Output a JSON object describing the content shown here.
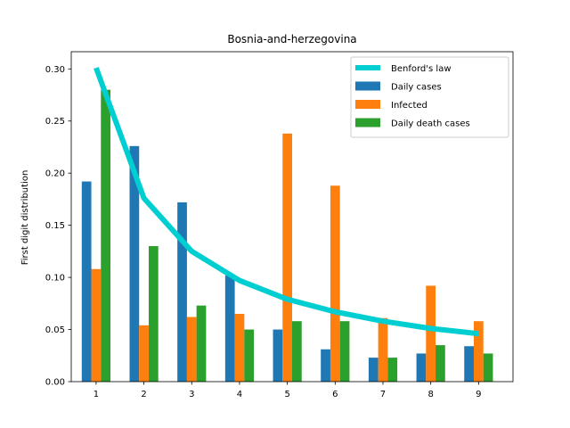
{
  "chart_data": {
    "type": "bar",
    "title": "Bosnia-and-herzegovina",
    "xlabel": "",
    "ylabel": "First digit distribution",
    "categories": [
      "1",
      "2",
      "3",
      "4",
      "5",
      "6",
      "7",
      "8",
      "9"
    ],
    "x": [
      1,
      2,
      3,
      4,
      5,
      6,
      7,
      8,
      9
    ],
    "xticks": [
      "1",
      "2",
      "3",
      "4",
      "5",
      "6",
      "7",
      "8",
      "9"
    ],
    "xlim": [
      0.48,
      9.72
    ],
    "ylim": [
      0,
      0.3165
    ],
    "yticks": [
      "0.00",
      "0.05",
      "0.10",
      "0.15",
      "0.20",
      "0.25",
      "0.30"
    ],
    "grid": false,
    "legend_position": "top-right",
    "line_series": {
      "name": "Benford's law",
      "color": "#00CED1",
      "values": [
        0.301,
        0.176,
        0.125,
        0.097,
        0.079,
        0.067,
        0.058,
        0.051,
        0.046
      ]
    },
    "series": [
      {
        "name": "Daily cases",
        "color": "#1f77b4",
        "values": [
          0.192,
          0.226,
          0.172,
          0.102,
          0.05,
          0.031,
          0.023,
          0.027,
          0.034
        ]
      },
      {
        "name": "Infected",
        "color": "#ff7f0e",
        "values": [
          0.108,
          0.054,
          0.062,
          0.065,
          0.238,
          0.188,
          0.061,
          0.092,
          0.058
        ]
      },
      {
        "name": "Daily death cases",
        "color": "#2ca02c",
        "values": [
          0.28,
          0.13,
          0.073,
          0.05,
          0.058,
          0.058,
          0.023,
          0.035,
          0.027
        ]
      }
    ]
  }
}
